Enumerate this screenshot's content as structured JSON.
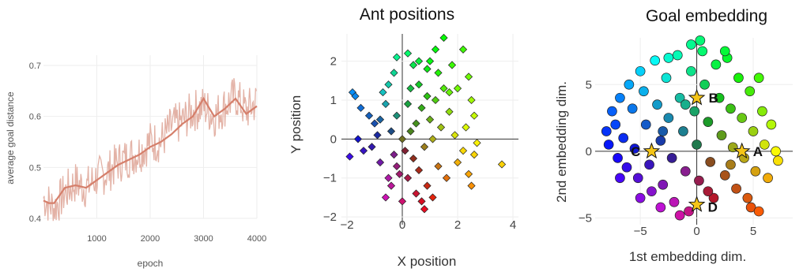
{
  "chart_data": [
    {
      "type": "line",
      "title": "",
      "xlabel": "epoch",
      "ylabel": "average goal distance",
      "xlim": [
        0,
        4000
      ],
      "ylim": [
        0.4,
        0.72
      ],
      "xticks": [
        1000,
        2000,
        3000,
        4000
      ],
      "yticks": [
        0.4,
        0.5,
        0.6,
        0.7
      ],
      "grid": true,
      "series": [
        {
          "role": "raw",
          "color": "#e3b2a6",
          "x": [
            0,
            200,
            400,
            600,
            800,
            1000,
            1200,
            1400,
            1600,
            1800,
            2000,
            2200,
            2400,
            2600,
            2800,
            3000,
            3200,
            3400,
            3600,
            3800,
            4000
          ],
          "y": [
            0.44,
            0.42,
            0.45,
            0.47,
            0.46,
            0.48,
            0.49,
            0.51,
            0.52,
            0.53,
            0.55,
            0.55,
            0.58,
            0.59,
            0.61,
            0.62,
            0.6,
            0.62,
            0.64,
            0.61,
            0.63
          ]
        },
        {
          "role": "smoothed",
          "color": "#d57f6b",
          "x": [
            0,
            100,
            200,
            300,
            400,
            600,
            800,
            1000,
            1200,
            1400,
            1600,
            1800,
            2000,
            2200,
            2400,
            2600,
            2800,
            3000,
            3200,
            3400,
            3600,
            3800,
            4000
          ],
          "y": [
            0.435,
            0.43,
            0.43,
            0.445,
            0.46,
            0.465,
            0.46,
            0.475,
            0.49,
            0.505,
            0.515,
            0.525,
            0.54,
            0.55,
            0.565,
            0.585,
            0.6,
            0.635,
            0.6,
            0.615,
            0.635,
            0.605,
            0.62
          ]
        }
      ]
    },
    {
      "type": "scatter",
      "title": "Ant positions",
      "xlabel": "X position",
      "ylabel": "Y position",
      "xlim": [
        -2.2,
        4.2
      ],
      "ylim": [
        -2.2,
        2.7
      ],
      "xticks": [
        -2,
        0,
        2,
        4
      ],
      "yticks": [
        -2,
        -1,
        0,
        1,
        2
      ],
      "marker": "diamond",
      "note_colors": "each point colored by its polar angle around the origin",
      "points": [
        [
          -1.8,
          1.2
        ],
        [
          -1.7,
          1.1
        ],
        [
          -1.5,
          0.8
        ],
        [
          -1.2,
          0.6
        ],
        [
          -1.0,
          0.4
        ],
        [
          -1.6,
          0.0
        ],
        [
          -1.9,
          -0.45
        ],
        [
          -1.4,
          -0.3
        ],
        [
          -1.1,
          -0.2
        ],
        [
          -0.9,
          0.1
        ],
        [
          -0.8,
          0.5
        ],
        [
          -0.6,
          0.9
        ],
        [
          -0.5,
          1.4
        ],
        [
          -0.3,
          1.7
        ],
        [
          -0.2,
          2.1
        ],
        [
          0.2,
          2.2
        ],
        [
          0.4,
          1.9
        ],
        [
          0.6,
          2.0
        ],
        [
          0.9,
          1.8
        ],
        [
          1.2,
          2.3
        ],
        [
          1.5,
          2.6
        ],
        [
          1.8,
          1.9
        ],
        [
          2.2,
          2.3
        ],
        [
          2.4,
          1.6
        ],
        [
          2.5,
          1.0
        ],
        [
          2.6,
          0.6
        ],
        [
          2.3,
          0.3
        ],
        [
          1.9,
          0.1
        ],
        [
          2.2,
          -0.3
        ],
        [
          2.6,
          -0.4
        ],
        [
          2.0,
          -0.6
        ],
        [
          2.4,
          -0.9
        ],
        [
          2.5,
          -1.2
        ],
        [
          3.6,
          -0.65
        ],
        [
          1.6,
          -1.0
        ],
        [
          1.3,
          -0.7
        ],
        [
          0.9,
          -1.2
        ],
        [
          0.7,
          -1.6
        ],
        [
          0.8,
          -1.8
        ],
        [
          0.5,
          -1.4
        ],
        [
          0.2,
          -1.0
        ],
        [
          -0.1,
          -0.9
        ],
        [
          -0.4,
          -1.2
        ],
        [
          -0.6,
          -1.5
        ],
        [
          -0.5,
          -1.0
        ],
        [
          -0.8,
          -0.6
        ],
        [
          -0.3,
          -0.4
        ],
        [
          0.1,
          -0.3
        ],
        [
          0.3,
          0.2
        ],
        [
          0.5,
          0.4
        ],
        [
          0.7,
          0.8
        ],
        [
          1.0,
          0.5
        ],
        [
          1.2,
          1.0
        ],
        [
          1.5,
          1.3
        ],
        [
          0.2,
          0.9
        ],
        [
          -0.2,
          0.6
        ],
        [
          -0.4,
          0.2
        ],
        [
          0.0,
          0.0
        ],
        [
          0.4,
          -0.5
        ],
        [
          0.8,
          -0.2
        ],
        [
          1.1,
          0.0
        ],
        [
          1.4,
          0.3
        ],
        [
          1.7,
          0.7
        ],
        [
          2.0,
          1.3
        ],
        [
          0.6,
          1.4
        ],
        [
          0.9,
          1.1
        ],
        [
          0.3,
          1.3
        ],
        [
          -0.7,
          1.2
        ],
        [
          1.3,
          1.7
        ],
        [
          1.7,
          1.2
        ],
        [
          2.7,
          -0.1
        ],
        [
          0.0,
          -1.6
        ],
        [
          1.1,
          -1.5
        ],
        [
          -0.2,
          -0.7
        ],
        [
          0.6,
          -0.8
        ],
        [
          1.0,
          2.0
        ]
      ]
    },
    {
      "type": "scatter",
      "title": "Goal embedding",
      "xlabel": "1st embedding dim.",
      "ylabel": "2nd embedding dim.",
      "xlim": [
        -9,
        8.5
      ],
      "ylim": [
        -5.5,
        8.5
      ],
      "xticks": [
        -5,
        0,
        5
      ],
      "yticks": [
        -5,
        0,
        5
      ],
      "marker": "circle",
      "points": [
        [
          -8,
          1.5
        ],
        [
          -7.8,
          0.5
        ],
        [
          -7.5,
          3.0
        ],
        [
          -7.2,
          2.0
        ],
        [
          -7.0,
          -0.5
        ],
        [
          -6.8,
          4.0
        ],
        [
          -6.5,
          1.0
        ],
        [
          -6.2,
          -1.2
        ],
        [
          -6.0,
          5.0
        ],
        [
          -5.7,
          3.2
        ],
        [
          -5.5,
          0.2
        ],
        [
          -5.2,
          -2.0
        ],
        [
          -5.0,
          6.0
        ],
        [
          -4.7,
          4.5
        ],
        [
          -4.5,
          2.0
        ],
        [
          -4.2,
          -1.0
        ],
        [
          -4.0,
          -3.0
        ],
        [
          -3.7,
          6.8
        ],
        [
          -3.5,
          3.5
        ],
        [
          -3.2,
          0.8
        ],
        [
          -3.0,
          -2.5
        ],
        [
          -2.7,
          5.5
        ],
        [
          -2.5,
          2.5
        ],
        [
          -2.2,
          -0.5
        ],
        [
          -2.0,
          -3.8
        ],
        [
          -1.7,
          7.2
        ],
        [
          -1.5,
          4.0
        ],
        [
          -1.2,
          1.5
        ],
        [
          -1.0,
          -1.5
        ],
        [
          -0.7,
          -4.5
        ],
        [
          -0.5,
          6.0
        ],
        [
          -0.2,
          3.0
        ],
        [
          0.0,
          0.5
        ],
        [
          0.2,
          -2.2
        ],
        [
          0.5,
          7.5
        ],
        [
          0.7,
          5.0
        ],
        [
          1.0,
          2.2
        ],
        [
          1.2,
          -0.8
        ],
        [
          1.5,
          -3.5
        ],
        [
          1.7,
          6.5
        ],
        [
          2.0,
          4.0
        ],
        [
          2.2,
          1.2
        ],
        [
          2.5,
          -1.8
        ],
        [
          2.7,
          7.0
        ],
        [
          3.0,
          3.2
        ],
        [
          3.2,
          0.3
        ],
        [
          3.5,
          -2.8
        ],
        [
          3.7,
          5.5
        ],
        [
          4.0,
          2.5
        ],
        [
          4.2,
          -0.5
        ],
        [
          4.5,
          -3.5
        ],
        [
          4.7,
          4.5
        ],
        [
          5.0,
          1.5
        ],
        [
          5.2,
          -1.5
        ],
        [
          5.5,
          5.5
        ],
        [
          5.8,
          3.0
        ],
        [
          6.0,
          0.5
        ],
        [
          6.3,
          -2.0
        ],
        [
          6.6,
          2.0
        ],
        [
          7.0,
          0.0
        ],
        [
          7.2,
          -0.7
        ],
        [
          -0.5,
          8.0
        ],
        [
          0.3,
          8.3
        ],
        [
          -2.5,
          7.0
        ],
        [
          2.5,
          7.5
        ],
        [
          -6.8,
          -2.0
        ],
        [
          -5.0,
          -3.5
        ],
        [
          -3.2,
          -4.2
        ],
        [
          -1.5,
          -4.8
        ],
        [
          4.8,
          -4.2
        ],
        [
          5.5,
          -4.5
        ],
        [
          -1.0,
          3.5
        ],
        [
          1.0,
          -3.0
        ],
        [
          -3.0,
          1.5
        ],
        [
          3.0,
          -1.0
        ]
      ],
      "stars": [
        {
          "label": "A",
          "x": 4,
          "y": 0
        },
        {
          "label": "B",
          "x": 0,
          "y": 4
        },
        {
          "label": "C",
          "x": -4,
          "y": 0
        },
        {
          "label": "D",
          "x": 0,
          "y": -4
        }
      ]
    }
  ]
}
